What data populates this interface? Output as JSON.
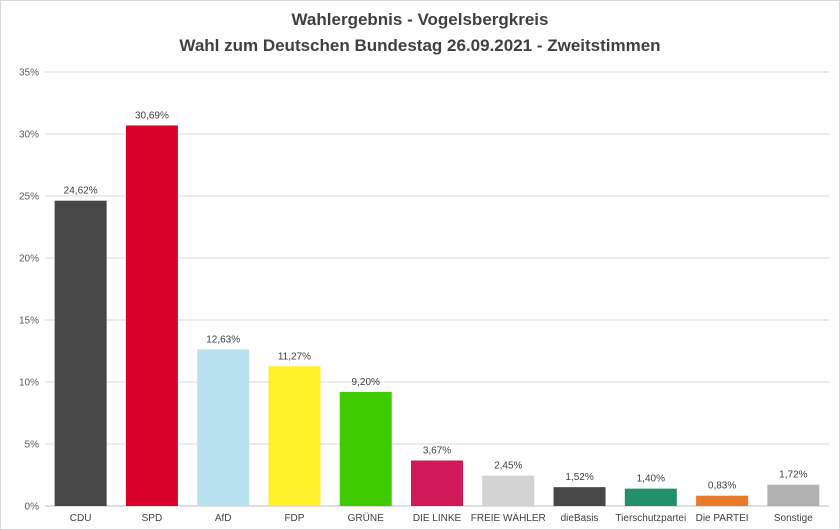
{
  "chart_data": {
    "type": "bar",
    "title": "Wahlergebnis  - Vogelsbergkreis",
    "subtitle": "Wahl zum Deutschen Bundestag 26.09.2021 - Zweitstimmen",
    "xlabel": "",
    "ylabel": "",
    "ylim": [
      0,
      35
    ],
    "y_ticks": [
      "0%",
      "5%",
      "10%",
      "15%",
      "20%",
      "25%",
      "30%",
      "35%"
    ],
    "grid": true,
    "legend": "none",
    "categories": [
      "CDU",
      "SPD",
      "AfD",
      "FDP",
      "GRÜNE",
      "DIE LINKE",
      "FREIE WÄHLER",
      "dieBasis",
      "Tierschutzpartei",
      "Die PARTEI",
      "Sonstige"
    ],
    "values": [
      24.62,
      30.69,
      12.63,
      11.27,
      9.2,
      3.67,
      2.45,
      1.52,
      1.4,
      0.83,
      1.72
    ],
    "data_labels": [
      "24,62%",
      "30,69%",
      "12,63%",
      "11,27%",
      "9,20%",
      "3,67%",
      "2,45%",
      "1,52%",
      "1,40%",
      "0,83%",
      "1,72%"
    ],
    "colors": [
      "#474747",
      "#d9002a",
      "#b7e1ef",
      "#fff02a",
      "#3ecc00",
      "#d21a5a",
      "#d3d3d3",
      "#474747",
      "#22906a",
      "#e87a2a",
      "#b2b2b2"
    ]
  }
}
